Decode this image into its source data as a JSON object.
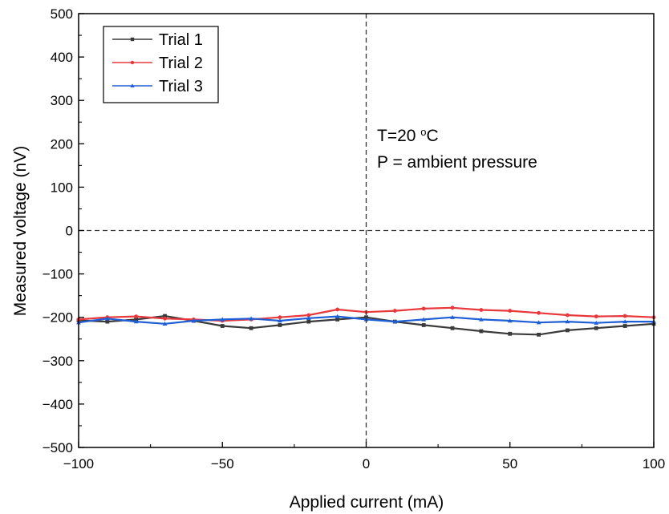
{
  "chart_data": {
    "type": "line",
    "xlabel": "Applied current (mA)",
    "ylabel": "Measured voltage (nV)",
    "xlim": [
      -100,
      100
    ],
    "ylim": [
      -500,
      500
    ],
    "xticks": [
      -100,
      -50,
      0,
      50,
      100
    ],
    "yticks": [
      -500,
      -400,
      -300,
      -200,
      -100,
      0,
      100,
      200,
      300,
      400,
      500
    ],
    "legend_position": "top-left",
    "grid": false,
    "reference_lines": {
      "x": 0,
      "y": 0,
      "style": "dashed"
    },
    "annotations": {
      "line1_prefix": "T=20 ",
      "line1_sup": "o",
      "line1_suffix": "C",
      "line2": "P = ambient pressure"
    },
    "series": [
      {
        "name": "Trial 1",
        "color": "#3a3a3a",
        "marker": "square",
        "x": [
          -100,
          -90,
          -80,
          -70,
          -60,
          -50,
          -40,
          -30,
          -20,
          -10,
          0,
          10,
          20,
          30,
          40,
          50,
          60,
          70,
          80,
          90,
          100
        ],
        "y": [
          -207,
          -210,
          -205,
          -197,
          -208,
          -220,
          -225,
          -218,
          -210,
          -205,
          -200,
          -210,
          -218,
          -225,
          -232,
          -238,
          -240,
          -230,
          -225,
          -220,
          -215
        ]
      },
      {
        "name": "Trial 2",
        "color": "#e8383c",
        "marker": "circle",
        "x": [
          -100,
          -90,
          -80,
          -70,
          -60,
          -50,
          -40,
          -30,
          -20,
          -10,
          0,
          10,
          20,
          30,
          40,
          50,
          60,
          70,
          80,
          90,
          100
        ],
        "y": [
          -205,
          -200,
          -198,
          -203,
          -205,
          -208,
          -205,
          -200,
          -195,
          -182,
          -188,
          -185,
          -180,
          -178,
          -183,
          -185,
          -190,
          -195,
          -198,
          -197,
          -200
        ]
      },
      {
        "name": "Trial 3",
        "color": "#1f5fd6",
        "marker": "triangle",
        "x": [
          -100,
          -90,
          -80,
          -70,
          -60,
          -50,
          -40,
          -30,
          -20,
          -10,
          0,
          10,
          20,
          30,
          40,
          50,
          60,
          70,
          80,
          90,
          100
        ],
        "y": [
          -212,
          -203,
          -210,
          -215,
          -208,
          -205,
          -203,
          -208,
          -202,
          -198,
          -205,
          -210,
          -205,
          -200,
          -205,
          -208,
          -212,
          -210,
          -213,
          -210,
          -210
        ]
      }
    ]
  }
}
